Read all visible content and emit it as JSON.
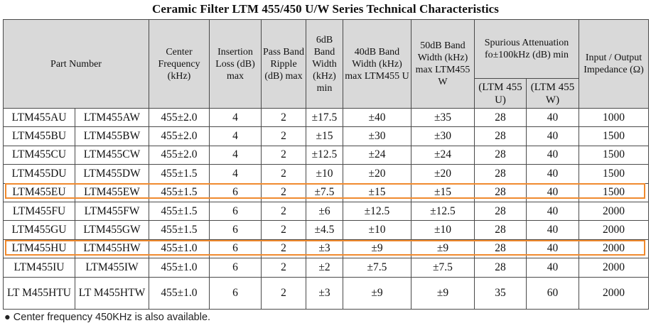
{
  "title": "Ceramic Filter LTM 455/450 U/W Series Technical Characteristics",
  "header": {
    "part_number": "Part Number",
    "center_frequency": "Center Frequency (kHz)",
    "insertion_loss": "Insertion Loss (dB) max",
    "pass_band_ripple": "Pass Band Ripple (dB) max",
    "bw_6db": "6dB Band Width (kHz) min",
    "bw_40db": "40dB Band Width (kHz) max LTM455 U",
    "bw_50db": "50dB Band Width (kHz) max LTM455 W",
    "spurious": "Spurious Attenuation fo±100kHz (dB) min",
    "spurious_u": "(LTM 455 U)",
    "spurious_w": "(LTM 455 W)",
    "impedance": "Input / Output Impedance (Ω)"
  },
  "rows": [
    {
      "u": "LTM455AU",
      "w": "LTM455AW",
      "freq": "455±2.0",
      "loss": "4",
      "ripple": "2",
      "bw6": "±17.5",
      "bw40": "±40",
      "bw50": "±35",
      "spu": "28",
      "spw": "40",
      "imp": "1000"
    },
    {
      "u": "LTM455BU",
      "w": "LTM455BW",
      "freq": "455±2.0",
      "loss": "4",
      "ripple": "2",
      "bw6": "±15",
      "bw40": "±30",
      "bw50": "±30",
      "spu": "28",
      "spw": "40",
      "imp": "1500"
    },
    {
      "u": "LTM455CU",
      "w": "LTM455CW",
      "freq": "455±2.0",
      "loss": "4",
      "ripple": "2",
      "bw6": "±12.5",
      "bw40": "±24",
      "bw50": "±24",
      "spu": "28",
      "spw": "40",
      "imp": "1500"
    },
    {
      "u": "LTM455DU",
      "w": "LTM455DW",
      "freq": "455±1.5",
      "loss": "4",
      "ripple": "2",
      "bw6": "±10",
      "bw40": "±20",
      "bw50": "±20",
      "spu": "28",
      "spw": "40",
      "imp": "1500"
    },
    {
      "u": "LTM455EU",
      "w": "LTM455EW",
      "freq": "455±1.5",
      "loss": "6",
      "ripple": "2",
      "bw6": "±7.5",
      "bw40": "±15",
      "bw50": "±15",
      "spu": "28",
      "spw": "40",
      "imp": "1500"
    },
    {
      "u": "LTM455FU",
      "w": "LTM455FW",
      "freq": "455±1.5",
      "loss": "6",
      "ripple": "2",
      "bw6": "±6",
      "bw40": "±12.5",
      "bw50": "±12.5",
      "spu": "28",
      "spw": "40",
      "imp": "2000"
    },
    {
      "u": "LTM455GU",
      "w": "LTM455GW",
      "freq": "455±1.5",
      "loss": "6",
      "ripple": "2",
      "bw6": "±4.5",
      "bw40": "±10",
      "bw50": "±10",
      "spu": "28",
      "spw": "40",
      "imp": "2000"
    },
    {
      "u": "LTM455HU",
      "w": "LTM455HW",
      "freq": "455±1.0",
      "loss": "6",
      "ripple": "2",
      "bw6": "±3",
      "bw40": "±9",
      "bw50": "±9",
      "spu": "28",
      "spw": "40",
      "imp": "2000"
    },
    {
      "u": "LTM455IU",
      "w": "LTM455IW",
      "freq": "455±1.0",
      "loss": "6",
      "ripple": "2",
      "bw6": "±2",
      "bw40": "±7.5",
      "bw50": "±7.5",
      "spu": "28",
      "spw": "40",
      "imp": "2000"
    },
    {
      "u": "LT M455HTU",
      "w": "LT M455HTW",
      "freq": "455±1.0",
      "loss": "6",
      "ripple": "2",
      "bw6": "±3",
      "bw40": "±9",
      "bw50": "±9",
      "spu": "35",
      "spw": "60",
      "imp": "2000"
    }
  ],
  "footnote": "● Center frequency 450KHz is also available.",
  "colors": {
    "highlight": "#f08a2e",
    "header_bg": "#d9d9d9",
    "border": "#4a4a4a"
  }
}
